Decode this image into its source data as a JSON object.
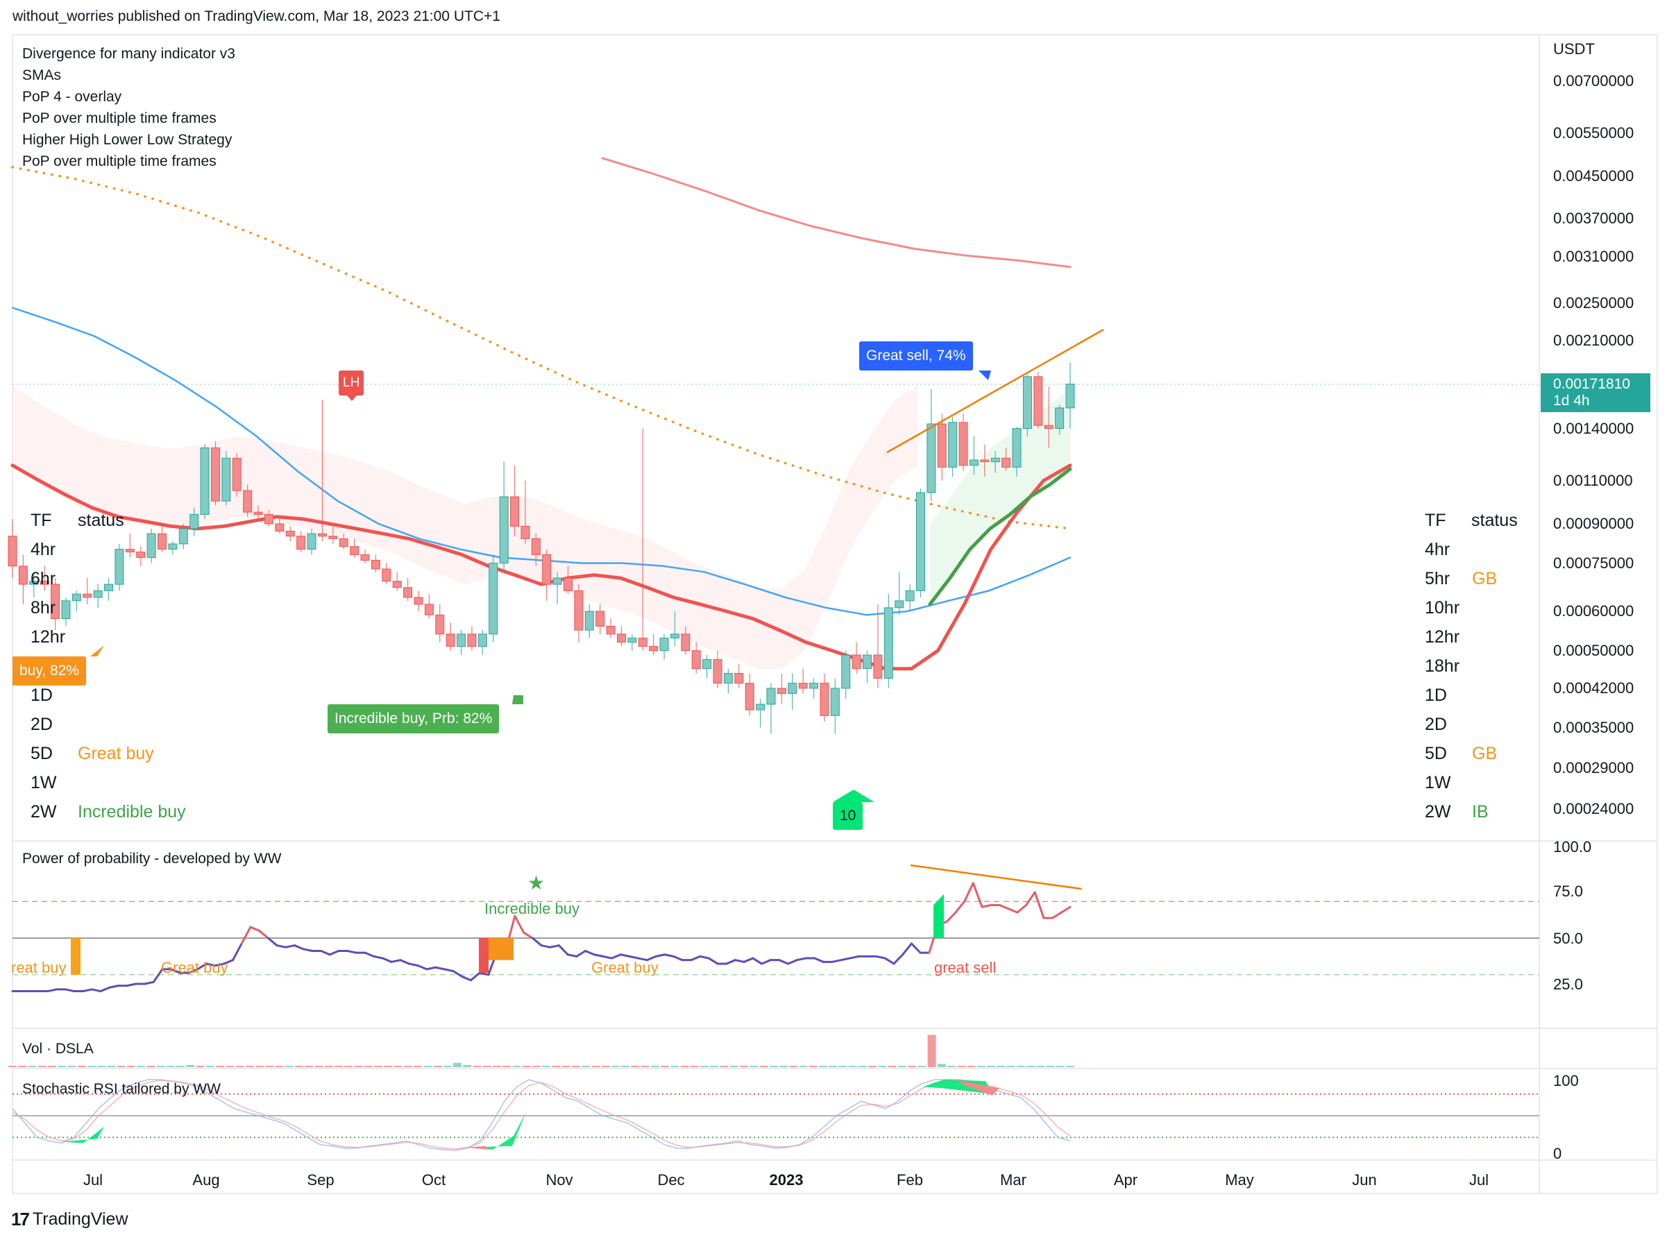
{
  "header": {
    "publish_line": "without_worries published on TradingView.com, Mar 18, 2023 21:00 UTC+1"
  },
  "indicators": [
    "Divergence for many indicator v3",
    "SMAs",
    "PoP 4 - overlay",
    "PoP over multiple time frames",
    "Higher High Lower Low Strategy",
    "PoP over multiple time frames"
  ],
  "price_axis": {
    "currency": "USDT",
    "ticks": [
      "0.00700000",
      "0.00550000",
      "0.00450000",
      "0.00370000",
      "0.00310000",
      "0.00250000",
      "0.00210000",
      "0.00140000",
      "0.00110000",
      "0.00090000",
      "0.00075000",
      "0.00060000",
      "0.00050000",
      "0.00042000",
      "0.00035000",
      "0.00029000",
      "0.00024000"
    ],
    "current_price": "0.00171810",
    "countdown": "1d 4h"
  },
  "left_table": {
    "col_tf": "TF",
    "col_status": "status",
    "rows": [
      {
        "tf": "4hr",
        "status": ""
      },
      {
        "tf": "6hr",
        "status": ""
      },
      {
        "tf": "8hr",
        "status": ""
      },
      {
        "tf": "12hr",
        "status": ""
      },
      {
        "tf": "",
        "status": ""
      },
      {
        "tf": "1D",
        "status": ""
      },
      {
        "tf": "2D",
        "status": ""
      },
      {
        "tf": "5D",
        "status": "Great buy"
      },
      {
        "tf": "1W",
        "status": ""
      },
      {
        "tf": "2W",
        "status": "Incredible buy"
      }
    ]
  },
  "right_table": {
    "col_tf": "TF",
    "col_status": "status",
    "rows": [
      {
        "tf": "4hr",
        "status": ""
      },
      {
        "tf": "5hr",
        "status": "GB"
      },
      {
        "tf": "10hr",
        "status": ""
      },
      {
        "tf": "12hr",
        "status": ""
      },
      {
        "tf": "18hr",
        "status": ""
      },
      {
        "tf": "1D",
        "status": ""
      },
      {
        "tf": "2D",
        "status": ""
      },
      {
        "tf": "5D",
        "status": "GB"
      },
      {
        "tf": "1W",
        "status": ""
      },
      {
        "tf": "2W",
        "status": "IB"
      }
    ]
  },
  "signals": {
    "lh": "LH",
    "great_sell": "Great sell, 74%",
    "incredible_buy": "Incredible buy, Prb: 82%",
    "left_buy": "buy,  82%",
    "count_badge": "10"
  },
  "pop_pane": {
    "title": "Power of probability - developed by WW",
    "ticks": [
      "100.0",
      "75.0",
      "50.0",
      "25.0"
    ],
    "labels": [
      "reat buy",
      "Great buy",
      "Incredible buy",
      "Great buy",
      "great sell"
    ]
  },
  "vol_pane": {
    "title": "Vol · DSLA"
  },
  "stoch_pane": {
    "title": "Stochastic RSI tailored by WW",
    "ticks": [
      "100",
      "0"
    ]
  },
  "time_axis": [
    "Jul",
    "Aug",
    "Sep",
    "Oct",
    "Nov",
    "Dec",
    "2023",
    "Feb",
    "Mar",
    "Apr",
    "May",
    "Jun",
    "Jul"
  ],
  "footer": {
    "brand": "TradingView"
  },
  "colors": {
    "up": "#80cbc4",
    "up_edge": "#26a69a",
    "down": "#f28b8b",
    "down_edge": "#ef5350",
    "ema_red": "#ef5350",
    "sma_blue": "#42a5f5",
    "sma_green": "#43a047",
    "dotted": "#f7931a",
    "pop_line": "#5e4db8"
  },
  "chart_data": {
    "type": "candlestick",
    "unit": "USDT",
    "scale": "log",
    "candles_ohlc": [
      [
        0.00085,
        0.00092,
        0.0007,
        0.00074
      ],
      [
        0.00074,
        0.00078,
        0.00062,
        0.00068
      ],
      [
        0.00068,
        0.00072,
        0.00064,
        0.00069
      ],
      [
        0.00069,
        0.00074,
        0.00066,
        0.00068
      ],
      [
        0.00068,
        0.0007,
        0.00055,
        0.00058
      ],
      [
        0.00058,
        0.00064,
        0.00056,
        0.00063
      ],
      [
        0.00063,
        0.00066,
        0.0006,
        0.00065
      ],
      [
        0.00065,
        0.0007,
        0.00062,
        0.00064
      ],
      [
        0.00064,
        0.00068,
        0.00061,
        0.00066
      ],
      [
        0.00066,
        0.0007,
        0.00063,
        0.00068
      ],
      [
        0.00068,
        0.00082,
        0.00066,
        0.0008
      ],
      [
        0.0008,
        0.00086,
        0.00077,
        0.00079
      ],
      [
        0.00079,
        0.00081,
        0.00074,
        0.00077
      ],
      [
        0.00077,
        0.00088,
        0.00075,
        0.00086
      ],
      [
        0.00086,
        0.00089,
        0.00079,
        0.0008
      ],
      [
        0.0008,
        0.00083,
        0.00078,
        0.00082
      ],
      [
        0.00082,
        0.0009,
        0.0008,
        0.00088
      ],
      [
        0.00088,
        0.00097,
        0.00085,
        0.00094
      ],
      [
        0.00094,
        0.0013,
        0.00092,
        0.00128
      ],
      [
        0.00128,
        0.00132,
        0.00098,
        0.001
      ],
      [
        0.001,
        0.00126,
        0.00098,
        0.00122
      ],
      [
        0.00122,
        0.00125,
        0.00102,
        0.00105
      ],
      [
        0.00105,
        0.00108,
        0.00093,
        0.00095
      ],
      [
        0.00095,
        0.00098,
        0.00092,
        0.00094
      ],
      [
        0.00094,
        0.00096,
        0.00089,
        0.0009
      ],
      [
        0.0009,
        0.00093,
        0.00086,
        0.00087
      ],
      [
        0.00087,
        0.00089,
        0.00083,
        0.00085
      ],
      [
        0.00085,
        0.00087,
        0.00079,
        0.0008
      ],
      [
        0.0008,
        0.00088,
        0.00078,
        0.00086
      ],
      [
        0.00086,
        0.0016,
        0.00083,
        0.00085
      ],
      [
        0.00085,
        0.00089,
        0.00082,
        0.00084
      ],
      [
        0.00084,
        0.00086,
        0.0008,
        0.00081
      ],
      [
        0.00081,
        0.00084,
        0.00077,
        0.00078
      ],
      [
        0.00078,
        0.0008,
        0.00075,
        0.00076
      ],
      [
        0.00076,
        0.00078,
        0.00072,
        0.00073
      ],
      [
        0.00073,
        0.00075,
        0.00068,
        0.00069
      ],
      [
        0.00069,
        0.00072,
        0.00066,
        0.00067
      ],
      [
        0.00067,
        0.0007,
        0.00063,
        0.00064
      ],
      [
        0.00064,
        0.00066,
        0.0006,
        0.00062
      ],
      [
        0.00062,
        0.00065,
        0.00058,
        0.00059
      ],
      [
        0.00059,
        0.00062,
        0.00052,
        0.00054
      ],
      [
        0.00054,
        0.00057,
        0.0005,
        0.00051
      ],
      [
        0.00051,
        0.00055,
        0.00049,
        0.00054
      ],
      [
        0.00054,
        0.00056,
        0.0005,
        0.00051
      ],
      [
        0.00051,
        0.00055,
        0.00049,
        0.00054
      ],
      [
        0.00054,
        0.00078,
        0.00052,
        0.00075
      ],
      [
        0.00075,
        0.0012,
        0.00072,
        0.00102
      ],
      [
        0.00102,
        0.00118,
        0.00085,
        0.00089
      ],
      [
        0.00089,
        0.0011,
        0.00082,
        0.00084
      ],
      [
        0.00084,
        0.00086,
        0.00074,
        0.00078
      ],
      [
        0.00078,
        0.0008,
        0.00063,
        0.00068
      ],
      [
        0.00068,
        0.00072,
        0.00062,
        0.0007
      ],
      [
        0.0007,
        0.00074,
        0.00065,
        0.00066
      ],
      [
        0.00066,
        0.00068,
        0.00052,
        0.00055
      ],
      [
        0.00055,
        0.00062,
        0.00053,
        0.0006
      ],
      [
        0.0006,
        0.00062,
        0.00054,
        0.00056
      ],
      [
        0.00056,
        0.00058,
        0.00053,
        0.00054
      ],
      [
        0.00054,
        0.00056,
        0.00051,
        0.00052
      ],
      [
        0.00052,
        0.00054,
        0.0005,
        0.00053
      ],
      [
        0.00053,
        0.0014,
        0.0005,
        0.00051
      ],
      [
        0.00051,
        0.00054,
        0.00049,
        0.0005
      ],
      [
        0.0005,
        0.00054,
        0.00048,
        0.00053
      ],
      [
        0.00053,
        0.0006,
        0.00051,
        0.00054
      ],
      [
        0.00054,
        0.00056,
        0.00049,
        0.0005
      ],
      [
        0.0005,
        0.00052,
        0.00045,
        0.00046
      ],
      [
        0.00046,
        0.00049,
        0.00044,
        0.00048
      ],
      [
        0.00048,
        0.0005,
        0.00042,
        0.00043
      ],
      [
        0.00043,
        0.00046,
        0.00041,
        0.00045
      ],
      [
        0.00045,
        0.00047,
        0.00042,
        0.00043
      ],
      [
        0.00043,
        0.00045,
        0.00037,
        0.00038
      ],
      [
        0.00038,
        0.0004,
        0.00035,
        0.00039
      ],
      [
        0.00039,
        0.00043,
        0.00034,
        0.00042
      ],
      [
        0.00042,
        0.00045,
        0.00039,
        0.00041
      ],
      [
        0.00041,
        0.00045,
        0.00038,
        0.00043
      ],
      [
        0.00043,
        0.00046,
        0.00041,
        0.00042
      ],
      [
        0.00042,
        0.00044,
        0.0004,
        0.00043
      ],
      [
        0.00043,
        0.00045,
        0.00036,
        0.00037
      ],
      [
        0.00037,
        0.00044,
        0.00034,
        0.00042
      ],
      [
        0.00042,
        0.0005,
        0.0004,
        0.00049
      ],
      [
        0.00049,
        0.00052,
        0.00045,
        0.00046
      ],
      [
        0.00046,
        0.0005,
        0.00043,
        0.00049
      ],
      [
        0.00049,
        0.00062,
        0.00042,
        0.00044
      ],
      [
        0.00044,
        0.00065,
        0.00042,
        0.00061
      ],
      [
        0.00061,
        0.00072,
        0.00059,
        0.00063
      ],
      [
        0.00063,
        0.00068,
        0.0006,
        0.00066
      ],
      [
        0.00066,
        0.00106,
        0.00064,
        0.00104
      ],
      [
        0.00104,
        0.00168,
        0.001,
        0.00143
      ],
      [
        0.00143,
        0.0015,
        0.0011,
        0.00117
      ],
      [
        0.00117,
        0.00148,
        0.00112,
        0.00144
      ],
      [
        0.00144,
        0.0015,
        0.00115,
        0.00118
      ],
      [
        0.00118,
        0.00135,
        0.00113,
        0.00121
      ],
      [
        0.00121,
        0.0013,
        0.00112,
        0.0012
      ],
      [
        0.0012,
        0.00126,
        0.00114,
        0.00122
      ],
      [
        0.00122,
        0.00128,
        0.00115,
        0.00117
      ],
      [
        0.00117,
        0.00141,
        0.00112,
        0.0014
      ],
      [
        0.0014,
        0.0018,
        0.00135,
        0.00178
      ],
      [
        0.00178,
        0.00182,
        0.0014,
        0.00142
      ],
      [
        0.00142,
        0.0017,
        0.00128,
        0.0014
      ],
      [
        0.0014,
        0.00156,
        0.00136,
        0.00154
      ],
      [
        0.00154,
        0.0019,
        0.0014,
        0.00172
      ]
    ],
    "pop_line": [
      21,
      21,
      21,
      21,
      21,
      22,
      22,
      21,
      21,
      22,
      21,
      23,
      24,
      24,
      25,
      25,
      26,
      33,
      33,
      31,
      31,
      33,
      36,
      35,
      36,
      38,
      47,
      56,
      54,
      50,
      46,
      45,
      46,
      44,
      43,
      43,
      41,
      43,
      43,
      42,
      42,
      40,
      39,
      37,
      38,
      36,
      35,
      33,
      34,
      33,
      32,
      29,
      27,
      31,
      30,
      43,
      44,
      62,
      53,
      50,
      46,
      45,
      46,
      41,
      40,
      43,
      41,
      40,
      39,
      41,
      40,
      39,
      38,
      40,
      41,
      40,
      38,
      38,
      40,
      39,
      36,
      36,
      38,
      37,
      39,
      36,
      38,
      38,
      36,
      38,
      39,
      39,
      37,
      37,
      38,
      39,
      40,
      40,
      40,
      39,
      36,
      41,
      47,
      42,
      42,
      57,
      59,
      64,
      70,
      80,
      67,
      68,
      68,
      66,
      64,
      68,
      75,
      61,
      61,
      64,
      67
    ],
    "stoch_k": [
      60,
      40,
      20,
      15,
      12,
      20,
      40,
      60,
      75,
      88,
      95,
      100,
      100,
      98,
      95,
      90,
      80,
      70,
      60,
      55,
      50,
      45,
      40,
      30,
      20,
      10,
      8,
      5,
      5,
      8,
      10,
      12,
      15,
      10,
      5,
      3,
      2,
      5,
      15,
      40,
      70,
      90,
      100,
      95,
      85,
      75,
      70,
      60,
      50,
      45,
      40,
      30,
      20,
      10,
      5,
      5,
      8,
      10,
      12,
      15,
      10,
      8,
      5,
      6,
      10,
      20,
      35,
      50,
      60,
      70,
      65,
      60,
      70,
      85,
      95,
      100,
      100,
      100,
      95,
      90,
      85,
      80,
      75,
      60,
      40,
      20,
      15
    ],
    "stoch_d": [
      55,
      45,
      30,
      20,
      15,
      18,
      30,
      50,
      65,
      80,
      90,
      96,
      99,
      98,
      96,
      92,
      85,
      76,
      68,
      60,
      54,
      48,
      43,
      35,
      25,
      15,
      10,
      7,
      6,
      7,
      9,
      11,
      13,
      12,
      8,
      5,
      4,
      6,
      12,
      30,
      55,
      78,
      92,
      96,
      90,
      80,
      73,
      65,
      57,
      50,
      44,
      35,
      26,
      16,
      9,
      6,
      7,
      9,
      11,
      13,
      12,
      10,
      7,
      7,
      9,
      16,
      28,
      42,
      54,
      64,
      66,
      63,
      67,
      78,
      88,
      96,
      99,
      100,
      98,
      94,
      89,
      84,
      79,
      68,
      52,
      34,
      22
    ],
    "volume": [
      1,
      1,
      1,
      1,
      1,
      1,
      1,
      1,
      1,
      1,
      1,
      1,
      1,
      1,
      1,
      1,
      1,
      1,
      2,
      1,
      1,
      1,
      1,
      1,
      1,
      1,
      1,
      1,
      1,
      1,
      1,
      1,
      1,
      1,
      1,
      1,
      1,
      1,
      1,
      1,
      1,
      1,
      1,
      1,
      1,
      4,
      2,
      1,
      1,
      1,
      1,
      1,
      1,
      1,
      1,
      1,
      1,
      1,
      1,
      1,
      1,
      1,
      1,
      1,
      1,
      1,
      1,
      1,
      1,
      1,
      1,
      1,
      1,
      1,
      1,
      1,
      1,
      1,
      1,
      1,
      1,
      1,
      1,
      1,
      1,
      1,
      1,
      1,
      1,
      1,
      1,
      1,
      1,
      30,
      3,
      1,
      1,
      1,
      1,
      1,
      1,
      1,
      1,
      1,
      1,
      1,
      1,
      1
    ],
    "ema_red": [
      0.00118,
      0.0011,
      0.00103,
      0.00097,
      0.00093,
      0.00091,
      0.00089,
      0.00088,
      0.00089,
      0.00091,
      0.00093,
      0.00092,
      0.0009,
      0.00088,
      0.00086,
      0.00084,
      0.00081,
      0.00078,
      0.00074,
      0.00071,
      0.00068,
      0.0007,
      0.00071,
      0.0007,
      0.00067,
      0.00064,
      0.00062,
      0.0006,
      0.00058,
      0.00055,
      0.00052,
      0.0005,
      0.00048,
      0.00046,
      0.00046,
      0.0005,
      0.00062,
      0.0008,
      0.00095,
      0.0011,
      0.00118
    ],
    "sma_blue": [
      0.00245,
      0.0023,
      0.00215,
      0.00195,
      0.00175,
      0.00155,
      0.00135,
      0.00115,
      0.001,
      0.0009,
      0.00084,
      0.0008,
      0.00077,
      0.00076,
      0.00075,
      0.00075,
      0.00074,
      0.00072,
      0.00068,
      0.00064,
      0.00061,
      0.00059,
      0.0006,
      0.00063,
      0.00066,
      0.00071,
      0.00077
    ],
    "sma_orange_dotted": [
      0.0047,
      0.00445,
      0.00415,
      0.0038,
      0.0034,
      0.003,
      0.00265,
      0.0023,
      0.002,
      0.00175,
      0.00155,
      0.00138,
      0.00124,
      0.00113,
      0.00104,
      0.00097,
      0.00091,
      0.00088
    ],
    "sma_pink": [
      0.0049,
      0.00455,
      0.0042,
      0.00385,
      0.00358,
      0.00338,
      0.00322,
      0.00312,
      0.00305,
      0.00296
    ],
    "sma_green": [
      0.00062,
      0.0007,
      0.0008,
      0.00088,
      0.00094,
      0.00102,
      0.00108,
      0.00116
    ]
  }
}
